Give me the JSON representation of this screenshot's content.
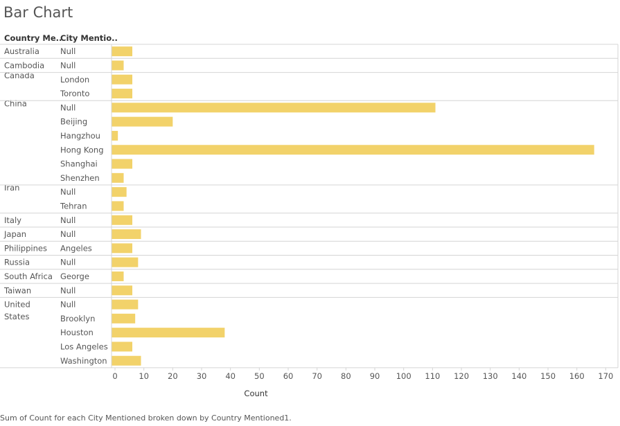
{
  "title": "Bar Chart",
  "headers": {
    "country": "Country Me..",
    "city": "City Mentio.."
  },
  "caption": "Sum of Count for each City Mentioned broken down by Country Mentioned1.",
  "colors": {
    "bar": "#f2d26a",
    "grid": "#d4d4d4",
    "axis": "#888888"
  },
  "chart_data": {
    "type": "bar",
    "orientation": "horizontal",
    "xlabel": "Count",
    "xlim": [
      0,
      172
    ],
    "xticks": [
      0,
      10,
      20,
      30,
      40,
      50,
      60,
      70,
      80,
      90,
      100,
      110,
      120,
      130,
      140,
      150,
      160,
      170
    ],
    "groups": [
      {
        "country": "Australia",
        "rows": [
          {
            "city": "Null",
            "value": 6
          }
        ]
      },
      {
        "country": "Cambodia",
        "rows": [
          {
            "city": "Null",
            "value": 3
          }
        ]
      },
      {
        "country": "Canada",
        "rows": [
          {
            "city": "London",
            "value": 6
          },
          {
            "city": "Toronto",
            "value": 6
          }
        ]
      },
      {
        "country": "China",
        "rows": [
          {
            "city": "Null",
            "value": 111
          },
          {
            "city": "Beijing",
            "value": 20
          },
          {
            "city": "Hangzhou",
            "value": 1
          },
          {
            "city": "Hong Kong",
            "value": 166
          },
          {
            "city": "Shanghai",
            "value": 6
          },
          {
            "city": "Shenzhen",
            "value": 3
          }
        ]
      },
      {
        "country": "Iran",
        "rows": [
          {
            "city": "Null",
            "value": 4
          },
          {
            "city": "Tehran",
            "value": 3
          }
        ]
      },
      {
        "country": "Italy",
        "rows": [
          {
            "city": "Null",
            "value": 6
          }
        ]
      },
      {
        "country": "Japan",
        "rows": [
          {
            "city": "Null",
            "value": 9
          }
        ]
      },
      {
        "country": "Philippines",
        "rows": [
          {
            "city": "Angeles",
            "value": 6
          }
        ]
      },
      {
        "country": "Russia",
        "rows": [
          {
            "city": "Null",
            "value": 8
          }
        ]
      },
      {
        "country": "South Africa",
        "rows": [
          {
            "city": "George",
            "value": 3
          }
        ]
      },
      {
        "country": "Taiwan",
        "rows": [
          {
            "city": "Null",
            "value": 6
          }
        ]
      },
      {
        "country": "United States",
        "rows": [
          {
            "city": "Null",
            "value": 8
          },
          {
            "city": "Brooklyn",
            "value": 7
          },
          {
            "city": "Houston",
            "value": 38
          },
          {
            "city": "Los Angeles",
            "value": 6
          },
          {
            "city": "Washington",
            "value": 9
          }
        ]
      }
    ]
  }
}
